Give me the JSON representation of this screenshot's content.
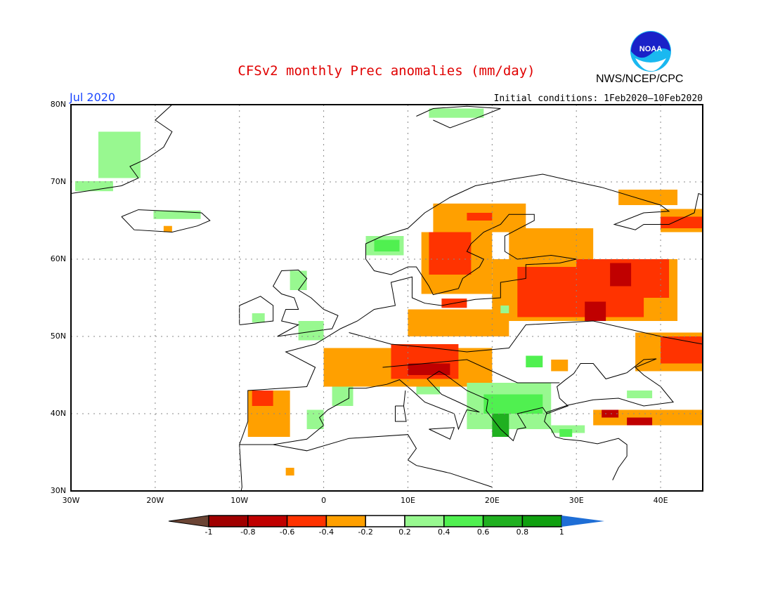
{
  "title": "CFSv2 monthly Prec anomalies (mm/day)",
  "valid_month": "Jul 2020",
  "initial_conditions": "Initial conditions: 1Feb2020—10Feb2020",
  "organization": "NWS/NCEP/CPC",
  "logo_text": "NOAA",
  "map": {
    "lon_range": [
      -30,
      45
    ],
    "lat_range": [
      30,
      80
    ],
    "lat_labels": [
      {
        "v": 80,
        "t": "80N"
      },
      {
        "v": 70,
        "t": "70N"
      },
      {
        "v": 60,
        "t": "60N"
      },
      {
        "v": 50,
        "t": "50N"
      },
      {
        "v": 40,
        "t": "40N"
      },
      {
        "v": 30,
        "t": "30N"
      }
    ],
    "lon_labels": [
      {
        "v": -30,
        "t": "30W"
      },
      {
        "v": -20,
        "t": "20W"
      },
      {
        "v": -10,
        "t": "10W"
      },
      {
        "v": 0,
        "t": "0"
      },
      {
        "v": 10,
        "t": "10E"
      },
      {
        "v": 20,
        "t": "20E"
      },
      {
        "v": 30,
        "t": "30E"
      },
      {
        "v": 40,
        "t": "40E"
      }
    ],
    "anomaly_regions_lonlat_class": [
      [
        -26.75,
        70.5,
        -21.75,
        76.5,
        "lg"
      ],
      [
        -29.5,
        68.8,
        -25,
        70.1,
        "lg"
      ],
      [
        -20.2,
        65.2,
        -14.6,
        66.3,
        "lg"
      ],
      [
        -19,
        63.5,
        -18,
        64.3,
        "o"
      ],
      [
        12.5,
        78.3,
        19,
        79.5,
        "lg"
      ],
      [
        5,
        60.5,
        9.5,
        63,
        "lg"
      ],
      [
        6,
        61,
        9,
        62.5,
        "g"
      ],
      [
        11.6,
        55.5,
        20,
        63.5,
        "o"
      ],
      [
        13,
        63.5,
        24,
        67.2,
        "o"
      ],
      [
        22,
        60,
        32,
        64,
        "o"
      ],
      [
        12.5,
        58,
        17.5,
        63.5,
        "r"
      ],
      [
        17,
        65,
        20,
        66,
        "r"
      ],
      [
        35,
        67,
        42,
        69,
        "o"
      ],
      [
        40,
        63.5,
        45,
        66.5,
        "o"
      ],
      [
        40,
        64,
        45,
        65.5,
        "r"
      ],
      [
        20,
        52,
        42,
        60,
        "o"
      ],
      [
        23,
        52.5,
        38,
        59,
        "r"
      ],
      [
        30,
        55,
        41,
        60,
        "r"
      ],
      [
        34,
        56.5,
        36.5,
        59.5,
        "dr"
      ],
      [
        31,
        52,
        33.5,
        54.5,
        "dr"
      ],
      [
        10,
        50,
        22,
        53.5,
        "o"
      ],
      [
        14,
        53.7,
        17,
        54.9,
        "r"
      ],
      [
        21,
        53,
        22,
        54,
        "lg"
      ],
      [
        0,
        43.5,
        20,
        48.5,
        "o"
      ],
      [
        8,
        44.5,
        16,
        49,
        "r"
      ],
      [
        10,
        45,
        15,
        46.5,
        "dr"
      ],
      [
        11,
        42.5,
        13.8,
        43.5,
        "lg"
      ],
      [
        37,
        45.5,
        45,
        50.5,
        "o"
      ],
      [
        40,
        46.5,
        45,
        50,
        "r"
      ],
      [
        27,
        45.5,
        29,
        47,
        "o"
      ],
      [
        -9,
        37,
        -4,
        43,
        "o"
      ],
      [
        -8.5,
        41,
        -6,
        43,
        "r"
      ],
      [
        -4.5,
        32,
        -3.5,
        33,
        "o"
      ],
      [
        32,
        38.5,
        45,
        40.5,
        "o"
      ],
      [
        33,
        39.5,
        35,
        40.5,
        "dr"
      ],
      [
        36,
        38.5,
        39,
        39.5,
        "dr"
      ],
      [
        17,
        38,
        27,
        44,
        "lg"
      ],
      [
        19,
        40,
        26,
        42.5,
        "g"
      ],
      [
        20,
        37,
        22,
        40,
        "dg"
      ],
      [
        24,
        46,
        26,
        47.5,
        "g"
      ],
      [
        36,
        42,
        39,
        43,
        "lg"
      ],
      [
        27,
        37.5,
        31,
        38.5,
        "lg"
      ],
      [
        28,
        37,
        29.5,
        38,
        "g"
      ],
      [
        -4,
        56,
        -2,
        58.5,
        "lg"
      ],
      [
        -8.5,
        51.8,
        -7,
        53,
        "lg"
      ],
      [
        -3,
        49.5,
        0,
        52,
        "lg"
      ],
      [
        1,
        41,
        3.5,
        43.5,
        "lg"
      ],
      [
        -2,
        38,
        0,
        40.5,
        "lg"
      ]
    ]
  },
  "colorbar": {
    "labels": [
      "-1",
      "-0.8",
      "-0.6",
      "-0.4",
      "-0.2",
      "0.2",
      "0.4",
      "0.6",
      "0.8",
      "1"
    ],
    "colors": {
      "below": "#6b4434",
      "dr2": "#a00000",
      "dr": "#c00000",
      "r": "#ff3300",
      "o": "#ffa000",
      "w": "#ffffff",
      "lg": "#98f890",
      "g": "#50f050",
      "dg": "#20b020",
      "dg2": "#10a010",
      "above": "#1e6ed6"
    }
  }
}
